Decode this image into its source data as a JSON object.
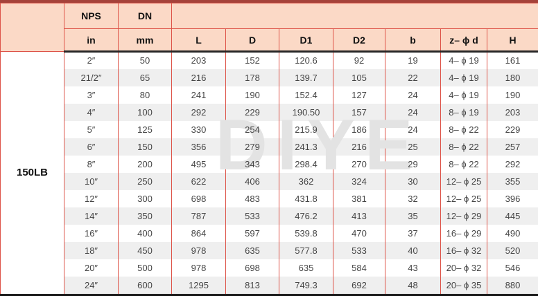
{
  "colors": {
    "header_background": "#fbd9c6",
    "border_red": "#dd5247",
    "top_rule_dark_red": "#a5423a",
    "heavy_rule_black": "#262626",
    "row_band_gray": "#efefef",
    "data_text": "#454545"
  },
  "watermark_text": "DIYE",
  "table": {
    "class_label": "150LB",
    "header_top": {
      "nps": "NPS",
      "dn": "DN"
    },
    "header_cols": [
      "in",
      "mm",
      "L",
      "D",
      "D1",
      "D2",
      "b",
      "z– ϕ d",
      "H"
    ],
    "rows": [
      [
        "2″",
        "50",
        "203",
        "152",
        "120.6",
        "92",
        "19",
        "4– ϕ 19",
        "161"
      ],
      [
        "21/2″",
        "65",
        "216",
        "178",
        "139.7",
        "105",
        "22",
        "4– ϕ 19",
        "180"
      ],
      [
        "3″",
        "80",
        "241",
        "190",
        "152.4",
        "127",
        "24",
        "4– ϕ 19",
        "190"
      ],
      [
        "4″",
        "100",
        "292",
        "229",
        "190.50",
        "157",
        "24",
        "8– ϕ 19",
        "203"
      ],
      [
        "5″",
        "125",
        "330",
        "254",
        "215.9",
        "186",
        "24",
        "8– ϕ 22",
        "229"
      ],
      [
        "6″",
        "150",
        "356",
        "279",
        "241.3",
        "216",
        "25",
        "8– ϕ 22",
        "257"
      ],
      [
        "8″",
        "200",
        "495",
        "343",
        "298.4",
        "270",
        "29",
        "8– ϕ 22",
        "292"
      ],
      [
        "10″",
        "250",
        "622",
        "406",
        "362",
        "324",
        "30",
        "12– ϕ 25",
        "355"
      ],
      [
        "12″",
        "300",
        "698",
        "483",
        "431.8",
        "381",
        "32",
        "12– ϕ 25",
        "396"
      ],
      [
        "14″",
        "350",
        "787",
        "533",
        "476.2",
        "413",
        "35",
        "12– ϕ 29",
        "445"
      ],
      [
        "16″",
        "400",
        "864",
        "597",
        "539.8",
        "470",
        "37",
        "16– ϕ 29",
        "490"
      ],
      [
        "18″",
        "450",
        "978",
        "635",
        "577.8",
        "533",
        "40",
        "16– ϕ 32",
        "520"
      ],
      [
        "20″",
        "500",
        "978",
        "698",
        "635",
        "584",
        "43",
        "20– ϕ 32",
        "546"
      ],
      [
        "24″",
        "600",
        "1295",
        "813",
        "749.3",
        "692",
        "48",
        "20– ϕ 35",
        "880"
      ]
    ]
  },
  "chart_data": {
    "type": "table",
    "title": "150LB flange dimensions",
    "columns": [
      "NPS in",
      "DN mm",
      "L",
      "D",
      "D1",
      "D2",
      "b",
      "z–ϕd",
      "H"
    ],
    "rows": [
      [
        "2″",
        50,
        203,
        152,
        120.6,
        92,
        19,
        "4–ϕ19",
        161
      ],
      [
        "21/2″",
        65,
        216,
        178,
        139.7,
        105,
        22,
        "4–ϕ19",
        180
      ],
      [
        "3″",
        80,
        241,
        190,
        152.4,
        127,
        24,
        "4–ϕ19",
        190
      ],
      [
        "4″",
        100,
        292,
        229,
        190.5,
        157,
        24,
        "8–ϕ19",
        203
      ],
      [
        "5″",
        125,
        330,
        254,
        215.9,
        186,
        24,
        "8–ϕ22",
        229
      ],
      [
        "6″",
        150,
        356,
        279,
        241.3,
        216,
        25,
        "8–ϕ22",
        257
      ],
      [
        "8″",
        200,
        495,
        343,
        298.4,
        270,
        29,
        "8–ϕ22",
        292
      ],
      [
        "10″",
        250,
        622,
        406,
        362,
        324,
        30,
        "12–ϕ25",
        355
      ],
      [
        "12″",
        300,
        698,
        483,
        431.8,
        381,
        32,
        "12–ϕ25",
        396
      ],
      [
        "14″",
        350,
        787,
        533,
        476.2,
        413,
        35,
        "12–ϕ29",
        445
      ],
      [
        "16″",
        400,
        864,
        597,
        539.8,
        470,
        37,
        "16–ϕ29",
        490
      ],
      [
        "18″",
        450,
        978,
        635,
        577.8,
        533,
        40,
        "16–ϕ32",
        520
      ],
      [
        "20″",
        500,
        978,
        698,
        635,
        584,
        43,
        "20–ϕ32",
        546
      ],
      [
        "24″",
        600,
        1295,
        813,
        749.3,
        692,
        48,
        "20–ϕ35",
        880
      ]
    ]
  }
}
